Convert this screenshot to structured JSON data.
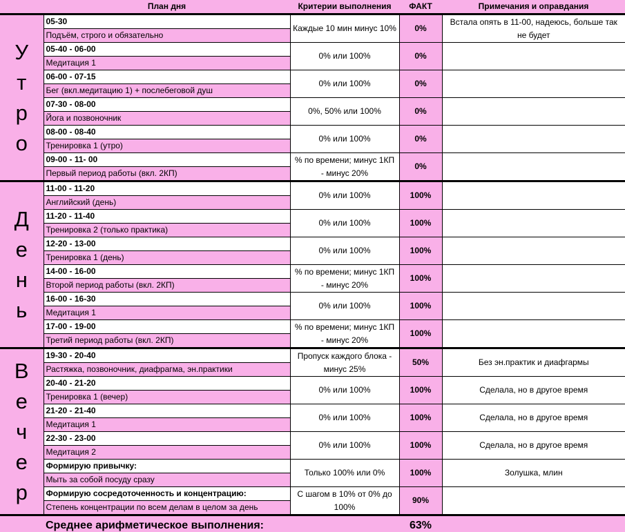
{
  "header": {
    "plan": "План дня",
    "criteria": "Критерии выполнения",
    "fact": "ФАКТ",
    "notes": "Примечания и оправдания"
  },
  "sections": [
    {
      "label": "Утро",
      "letters": [
        "У",
        "т",
        "р",
        "о"
      ],
      "rows": [
        {
          "time": "05-30",
          "task": "Подъём, строго и обязательно",
          "criteria": "Каждые 10 мин минус 10%",
          "fact": "0%",
          "note": "Встала опять в 11-00, надеюсь, больше так не будет"
        },
        {
          "time": "05-40 - 06-00",
          "task": "Медитация 1",
          "criteria": "0% или 100%",
          "fact": "0%",
          "note": ""
        },
        {
          "time": "06-00 - 07-15",
          "task": "Бег (вкл.медитацию 1) + послебеговой душ",
          "criteria": "0% или 100%",
          "fact": "0%",
          "note": ""
        },
        {
          "time": "07-30 - 08-00",
          "task": "Йога и позвоночник",
          "criteria": "0%, 50% или 100%",
          "fact": "0%",
          "note": ""
        },
        {
          "time": "08-00 - 08-40",
          "task": "Тренировка 1 (утро)",
          "criteria": "0% или 100%",
          "fact": "0%",
          "note": ""
        },
        {
          "time": "09-00 - 11- 00",
          "task": "Первый период работы (вкл. 2КП)",
          "criteria": "% по времени; минус 1КП - минус 20%",
          "fact": "0%",
          "note": ""
        }
      ]
    },
    {
      "label": "День",
      "letters": [
        "Д",
        "е",
        "н",
        "ь"
      ],
      "rows": [
        {
          "time": "11-00 - 11-20",
          "task": "Английский (день)",
          "criteria": "0% или 100%",
          "fact": "100%",
          "note": ""
        },
        {
          "time": "11-20 - 11-40",
          "task": "Тренировка 2 (только практика)",
          "criteria": "0% или 100%",
          "fact": "100%",
          "note": ""
        },
        {
          "time": "12-20 - 13-00",
          "task": "Тренировка 1 (день)",
          "criteria": "0% или 100%",
          "fact": "100%",
          "note": ""
        },
        {
          "time": "14-00 - 16-00",
          "task": "Второй период работы (вкл. 2КП)",
          "criteria": "% по времени; минус 1КП - минус 20%",
          "fact": "100%",
          "note": ""
        },
        {
          "time": "16-00 - 16-30",
          "task": "Медитация 1",
          "criteria": "0% или 100%",
          "fact": "100%",
          "note": ""
        },
        {
          "time": "17-00 - 19-00",
          "task": "Третий период работы (вкл. 2КП)",
          "criteria": "% по времени; минус 1КП - минус 20%",
          "fact": "100%",
          "note": ""
        }
      ]
    },
    {
      "label": "Вечер",
      "letters": [
        "В",
        "е",
        "ч",
        "е",
        "р"
      ],
      "rows": [
        {
          "time": "19-30 - 20-40",
          "task": "Растяжка, позвоночник, диафрагма, эн.практики",
          "criteria": "Пропуск каждого блока - минус 25%",
          "fact": "50%",
          "note": "Без эн.практик и диафгармы"
        },
        {
          "time": "20-40 - 21-20",
          "task": "Тренировка 1 (вечер)",
          "criteria": "0% или 100%",
          "fact": "100%",
          "note": "Сделала, но в другое время"
        },
        {
          "time": "21-20 - 21-40",
          "task": "Медитация 1",
          "criteria": "0% или 100%",
          "fact": "100%",
          "note": "Сделала, но в другое время"
        },
        {
          "time": "22-30 - 23-00",
          "task": "Медитация 2",
          "criteria": "0% или 100%",
          "fact": "100%",
          "note": "Сделала, но в другое время"
        },
        {
          "time": "Формирую привычку:",
          "task": "Мыть за собой посуду сразу",
          "criteria": "Только 100% или 0%",
          "fact": "100%",
          "note": "Золушка, млин"
        },
        {
          "time": "Формирую сосредоточенность и концентрацию:",
          "task": "Степень концентрации по всем делам в целом за день",
          "criteria": "С шагом в 10% от 0% до 100%",
          "fact": "90%",
          "note": ""
        }
      ]
    }
  ],
  "footer": {
    "label": "Среднее арифметическое выполнения:",
    "value": "63%"
  },
  "colors": {
    "pink": "#f9b0e8"
  }
}
